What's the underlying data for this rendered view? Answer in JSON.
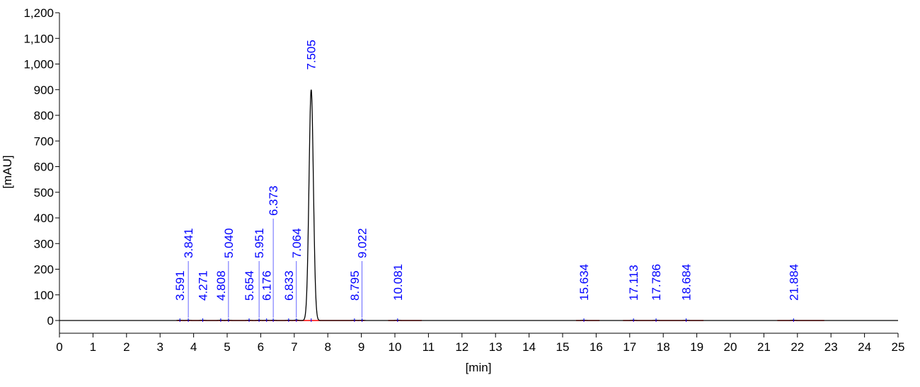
{
  "chart_data": {
    "type": "line",
    "title": "",
    "xlabel": "[min]",
    "ylabel": "[mAU]",
    "xlim": [
      0,
      25
    ],
    "ylim": [
      -50,
      1200
    ],
    "x_ticks": [
      "0",
      "1",
      "2",
      "3",
      "4",
      "5",
      "6",
      "7",
      "8",
      "9",
      "10",
      "11",
      "12",
      "13",
      "14",
      "15",
      "16",
      "17",
      "18",
      "19",
      "20",
      "21",
      "22",
      "23",
      "24",
      "25"
    ],
    "y_ticks": [
      "0",
      "100",
      "200",
      "300",
      "400",
      "500",
      "600",
      "700",
      "800",
      "900",
      "1,000",
      "1,100",
      "1,200"
    ],
    "grid": false,
    "colors": {
      "trace": "#000000",
      "peak_label": "#0000ff",
      "baseline": "#ff0000",
      "axis": "#000000"
    },
    "peaks": [
      {
        "label": "3.591",
        "rt": 3.591,
        "height": 1
      },
      {
        "label": "3.841",
        "rt": 3.841,
        "height": 1
      },
      {
        "label": "4.271",
        "rt": 4.271,
        "height": 1
      },
      {
        "label": "4.808",
        "rt": 4.808,
        "height": 1
      },
      {
        "label": "5.040",
        "rt": 5.04,
        "height": 1
      },
      {
        "label": "5.654",
        "rt": 5.654,
        "height": 1
      },
      {
        "label": "5.951",
        "rt": 5.951,
        "height": 1
      },
      {
        "label": "6.176",
        "rt": 6.176,
        "height": 1
      },
      {
        "label": "6.373",
        "rt": 6.373,
        "height": 1
      },
      {
        "label": "6.833",
        "rt": 6.833,
        "height": 1
      },
      {
        "label": "7.064",
        "rt": 7.064,
        "height": 2
      },
      {
        "label": "7.505",
        "rt": 7.505,
        "height": 900
      },
      {
        "label": "8.795",
        "rt": 8.795,
        "height": 1
      },
      {
        "label": "9.022",
        "rt": 9.022,
        "height": 1
      },
      {
        "label": "10.081",
        "rt": 10.081,
        "height": 1
      },
      {
        "label": "15.634",
        "rt": 15.634,
        "height": 1
      },
      {
        "label": "17.113",
        "rt": 17.113,
        "height": 1
      },
      {
        "label": "17.786",
        "rt": 17.786,
        "height": 1
      },
      {
        "label": "18.684",
        "rt": 18.684,
        "height": 1
      },
      {
        "label": "21.884",
        "rt": 21.884,
        "height": 1
      }
    ],
    "baselines": [
      [
        3.5,
        9.1
      ],
      [
        9.8,
        10.8
      ],
      [
        15.4,
        16.1
      ],
      [
        16.8,
        19.2
      ],
      [
        21.4,
        22.8
      ]
    ]
  }
}
